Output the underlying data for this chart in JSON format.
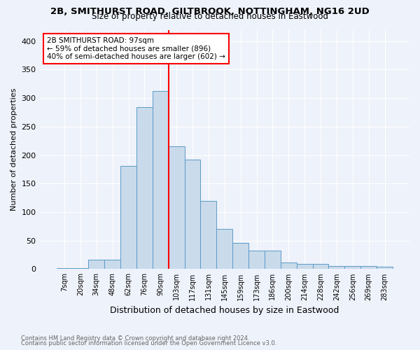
{
  "title1": "2B, SMITHURST ROAD, GILTBROOK, NOTTINGHAM, NG16 2UD",
  "title2": "Size of property relative to detached houses in Eastwood",
  "xlabel": "Distribution of detached houses by size in Eastwood",
  "ylabel": "Number of detached properties",
  "footnote1": "Contains HM Land Registry data © Crown copyright and database right 2024.",
  "footnote2": "Contains public sector information licensed under the Open Government Licence v3.0.",
  "categories": [
    "7sqm",
    "20sqm",
    "34sqm",
    "48sqm",
    "62sqm",
    "76sqm",
    "90sqm",
    "103sqm",
    "117sqm",
    "131sqm",
    "145sqm",
    "159sqm",
    "173sqm",
    "186sqm",
    "200sqm",
    "214sqm",
    "228sqm",
    "242sqm",
    "256sqm",
    "269sqm",
    "283sqm"
  ],
  "values": [
    2,
    2,
    16,
    16,
    181,
    284,
    313,
    215,
    192,
    120,
    70,
    46,
    33,
    33,
    12,
    9,
    9,
    6,
    5,
    5,
    4
  ],
  "bar_color": "#c9daea",
  "bar_edge_color": "#5b9bc8",
  "vline_x": 6.5,
  "vline_color": "red",
  "annotation_title": "2B SMITHURST ROAD: 97sqm",
  "annotation_line1": "← 59% of detached houses are smaller (896)",
  "annotation_line2": "40% of semi-detached houses are larger (602) →",
  "ylim": [
    0,
    420
  ],
  "yticks": [
    0,
    50,
    100,
    150,
    200,
    250,
    300,
    350,
    400
  ],
  "bg_color": "#eef2fa"
}
